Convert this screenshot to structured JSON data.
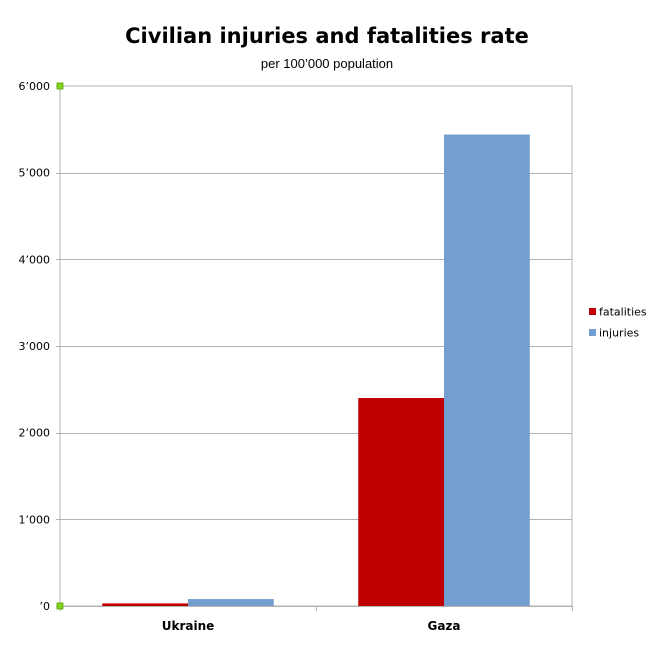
{
  "chart_data": {
    "type": "bar",
    "title": "Civilian injuries and fatalities rate",
    "subtitle": "per 100’000 population",
    "xlabel": "",
    "ylabel": "",
    "categories": [
      "Ukraine",
      "Gaza"
    ],
    "series": [
      {
        "name": "fatalities",
        "color": "#c00000",
        "values": [
          30,
          2400
        ]
      },
      {
        "name": "injuries",
        "color": "#729fcf",
        "values": [
          80,
          5440
        ]
      }
    ],
    "ylim": [
      0,
      6000
    ],
    "yticks": [
      0,
      1000,
      2000,
      3000,
      4000,
      5000,
      6000
    ],
    "ytick_labels": [
      "’0",
      "1’000",
      "2’000",
      "3’000",
      "4’000",
      "5’000",
      "6’000"
    ],
    "grid": true,
    "legend_position": "right",
    "colors": {
      "grid": "#b3b3b3",
      "axis": "#b3b3b3",
      "plot_border": "#b3b3b3",
      "axis_marker": "#81d41a"
    }
  }
}
